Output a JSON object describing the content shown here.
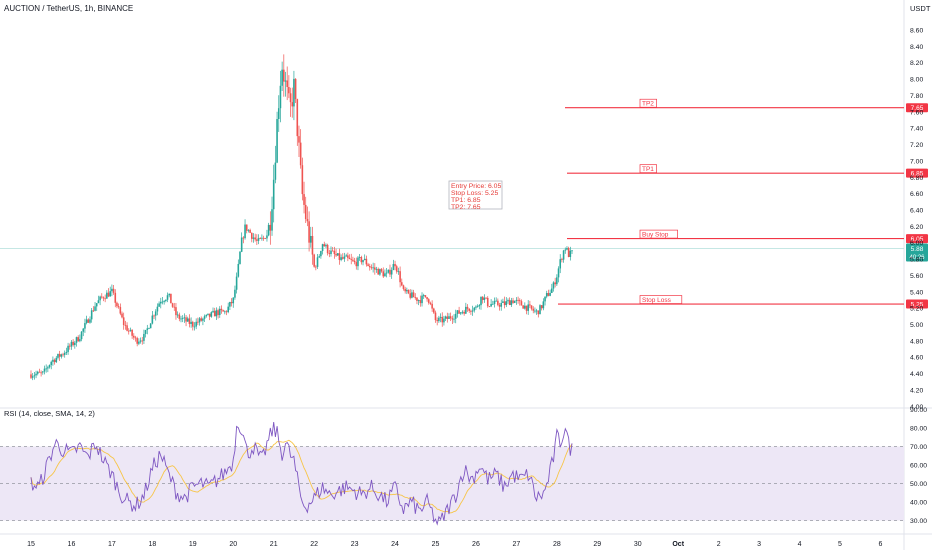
{
  "header": {
    "symbol": "AUCTION / TetherUS, 1h, BINANCE",
    "currency": "USDT"
  },
  "rsi_header": "RSI (14, close, SMA, 14, 2)",
  "colors": {
    "up": "#26a69a",
    "down": "#ef5350",
    "level": "#f23645",
    "rsi_line": "#7e57c2",
    "rsi_ma": "#f7c548",
    "rsi_band": "#ede7f6"
  },
  "chart_data": [
    {
      "type": "candlestick",
      "title": "AUCTION / TetherUS, 1h, BINANCE",
      "x_tick_labels": [
        "15",
        "16",
        "17",
        "18",
        "19",
        "20",
        "21",
        "22",
        "23",
        "24",
        "25",
        "26",
        "27",
        "28",
        "29",
        "30",
        "Oct",
        "2",
        "3",
        "4",
        "5",
        "6"
      ],
      "y_tick_labels": [
        "4.00",
        "4.20",
        "4.40",
        "4.60",
        "4.80",
        "5.00",
        "5.20",
        "5.40",
        "5.60",
        "5.80",
        "6.00",
        "6.20",
        "6.40",
        "6.60",
        "6.80",
        "7.00",
        "7.20",
        "7.40",
        "7.60",
        "7.80",
        "8.00",
        "8.20",
        "8.40",
        "8.60"
      ],
      "ylim": [
        4.0,
        8.7
      ],
      "last_price": "5.88",
      "countdown": "40:26",
      "levels": [
        {
          "name": "TP2",
          "value": 7.65,
          "label": "7.65"
        },
        {
          "name": "TP1",
          "value": 6.85,
          "label": "6.85"
        },
        {
          "name": "Buy Stop",
          "value": 6.05,
          "label": "6.05"
        },
        {
          "name": "Stop Loss",
          "value": 5.25,
          "label": "5.25"
        }
      ],
      "annotation": [
        "Entry Price: 6.05",
        "Stop Loss: 5.25",
        "TP1: 6.85",
        "TP2: 7.65"
      ],
      "close_path": [
        [
          15.0,
          4.39
        ],
        [
          15.3,
          4.4
        ],
        [
          15.5,
          4.55
        ],
        [
          15.8,
          4.65
        ],
        [
          16.0,
          4.75
        ],
        [
          16.2,
          4.85
        ],
        [
          16.4,
          5.05
        ],
        [
          16.6,
          5.25
        ],
        [
          16.8,
          5.35
        ],
        [
          17.0,
          5.4
        ],
        [
          17.15,
          5.2
        ],
        [
          17.3,
          5.0
        ],
        [
          17.45,
          4.9
        ],
        [
          17.6,
          4.8
        ],
        [
          17.8,
          4.85
        ],
        [
          18.0,
          5.1
        ],
        [
          18.2,
          5.3
        ],
        [
          18.4,
          5.35
        ],
        [
          18.6,
          5.1
        ],
        [
          18.8,
          5.05
        ],
        [
          19.0,
          5.0
        ],
        [
          19.2,
          5.05
        ],
        [
          19.4,
          5.1
        ],
        [
          19.6,
          5.15
        ],
        [
          19.8,
          5.15
        ],
        [
          20.0,
          5.3
        ],
        [
          20.1,
          5.6
        ],
        [
          20.2,
          6.0
        ],
        [
          20.3,
          6.2
        ],
        [
          20.45,
          6.1
        ],
        [
          20.6,
          6.0
        ],
        [
          20.75,
          6.05
        ],
        [
          20.9,
          6.2
        ],
        [
          21.0,
          6.8
        ],
        [
          21.1,
          7.6
        ],
        [
          21.2,
          8.2
        ],
        [
          21.3,
          7.9
        ],
        [
          21.4,
          7.6
        ],
        [
          21.5,
          7.9
        ],
        [
          21.6,
          7.3
        ],
        [
          21.7,
          6.6
        ],
        [
          21.8,
          6.3
        ],
        [
          21.9,
          6.0
        ],
        [
          22.0,
          5.7
        ],
        [
          22.1,
          5.8
        ],
        [
          22.2,
          6.0
        ],
        [
          22.35,
          5.9
        ],
        [
          22.5,
          5.85
        ],
        [
          22.65,
          5.8
        ],
        [
          22.8,
          5.8
        ],
        [
          23.0,
          5.75
        ],
        [
          23.2,
          5.8
        ],
        [
          23.4,
          5.7
        ],
        [
          23.6,
          5.65
        ],
        [
          23.8,
          5.6
        ],
        [
          24.0,
          5.75
        ],
        [
          24.1,
          5.6
        ],
        [
          24.2,
          5.4
        ],
        [
          24.4,
          5.35
        ],
        [
          24.6,
          5.3
        ],
        [
          24.8,
          5.35
        ],
        [
          25.0,
          5.05
        ],
        [
          25.2,
          5.05
        ],
        [
          25.4,
          5.1
        ],
        [
          25.6,
          5.15
        ],
        [
          25.8,
          5.2
        ],
        [
          26.0,
          5.2
        ],
        [
          26.15,
          5.35
        ],
        [
          26.3,
          5.25
        ],
        [
          26.5,
          5.25
        ],
        [
          26.7,
          5.25
        ],
        [
          26.9,
          5.3
        ],
        [
          27.1,
          5.25
        ],
        [
          27.3,
          5.2
        ],
        [
          27.5,
          5.15
        ],
        [
          27.6,
          5.2
        ],
        [
          27.75,
          5.35
        ],
        [
          27.9,
          5.45
        ],
        [
          28.0,
          5.6
        ],
        [
          28.1,
          5.8
        ],
        [
          28.2,
          5.95
        ],
        [
          28.3,
          5.85
        ],
        [
          28.4,
          5.88
        ]
      ]
    },
    {
      "type": "line",
      "title": "RSI (14, close, SMA, 14, 2)",
      "y_tick_labels": [
        "30.00",
        "40.00",
        "50.00",
        "60.00",
        "70.00",
        "80.00",
        "90.00"
      ],
      "ylim": [
        27,
        92
      ],
      "bands": [
        30,
        50,
        70
      ],
      "rsi_path": [
        [
          15.0,
          50
        ],
        [
          15.2,
          48
        ],
        [
          15.4,
          60
        ],
        [
          15.6,
          72
        ],
        [
          15.8,
          68
        ],
        [
          16.0,
          66
        ],
        [
          16.2,
          70
        ],
        [
          16.4,
          64
        ],
        [
          16.6,
          72
        ],
        [
          16.8,
          62
        ],
        [
          17.0,
          55
        ],
        [
          17.2,
          45
        ],
        [
          17.4,
          40
        ],
        [
          17.6,
          38
        ],
        [
          17.8,
          44
        ],
        [
          18.0,
          58
        ],
        [
          18.2,
          66
        ],
        [
          18.4,
          55
        ],
        [
          18.6,
          45
        ],
        [
          18.8,
          42
        ],
        [
          19.0,
          48
        ],
        [
          19.2,
          50
        ],
        [
          19.4,
          48
        ],
        [
          19.6,
          52
        ],
        [
          19.8,
          56
        ],
        [
          20.0,
          62
        ],
        [
          20.1,
          85
        ],
        [
          20.2,
          80
        ],
        [
          20.35,
          66
        ],
        [
          20.5,
          70
        ],
        [
          20.7,
          62
        ],
        [
          20.85,
          72
        ],
        [
          21.0,
          80
        ],
        [
          21.1,
          76
        ],
        [
          21.2,
          66
        ],
        [
          21.3,
          72
        ],
        [
          21.4,
          66
        ],
        [
          21.5,
          62
        ],
        [
          21.6,
          50
        ],
        [
          21.7,
          40
        ],
        [
          21.8,
          38
        ],
        [
          22.0,
          42
        ],
        [
          22.2,
          48
        ],
        [
          22.4,
          44
        ],
        [
          22.6,
          46
        ],
        [
          22.8,
          48
        ],
        [
          23.0,
          46
        ],
        [
          23.2,
          44
        ],
        [
          23.4,
          48
        ],
        [
          23.6,
          44
        ],
        [
          23.8,
          40
        ],
        [
          24.0,
          48
        ],
        [
          24.2,
          36
        ],
        [
          24.4,
          40
        ],
        [
          24.6,
          35
        ],
        [
          24.8,
          40
        ],
        [
          25.0,
          30
        ],
        [
          25.1,
          28
        ],
        [
          25.3,
          36
        ],
        [
          25.5,
          44
        ],
        [
          25.7,
          58
        ],
        [
          25.9,
          52
        ],
        [
          26.1,
          60
        ],
        [
          26.3,
          52
        ],
        [
          26.5,
          55
        ],
        [
          26.7,
          48
        ],
        [
          26.9,
          55
        ],
        [
          27.1,
          52
        ],
        [
          27.3,
          55
        ],
        [
          27.5,
          42
        ],
        [
          27.7,
          45
        ],
        [
          27.9,
          62
        ],
        [
          28.0,
          75
        ],
        [
          28.1,
          72
        ],
        [
          28.2,
          82
        ],
        [
          28.3,
          70
        ],
        [
          28.4,
          68
        ]
      ]
    }
  ]
}
